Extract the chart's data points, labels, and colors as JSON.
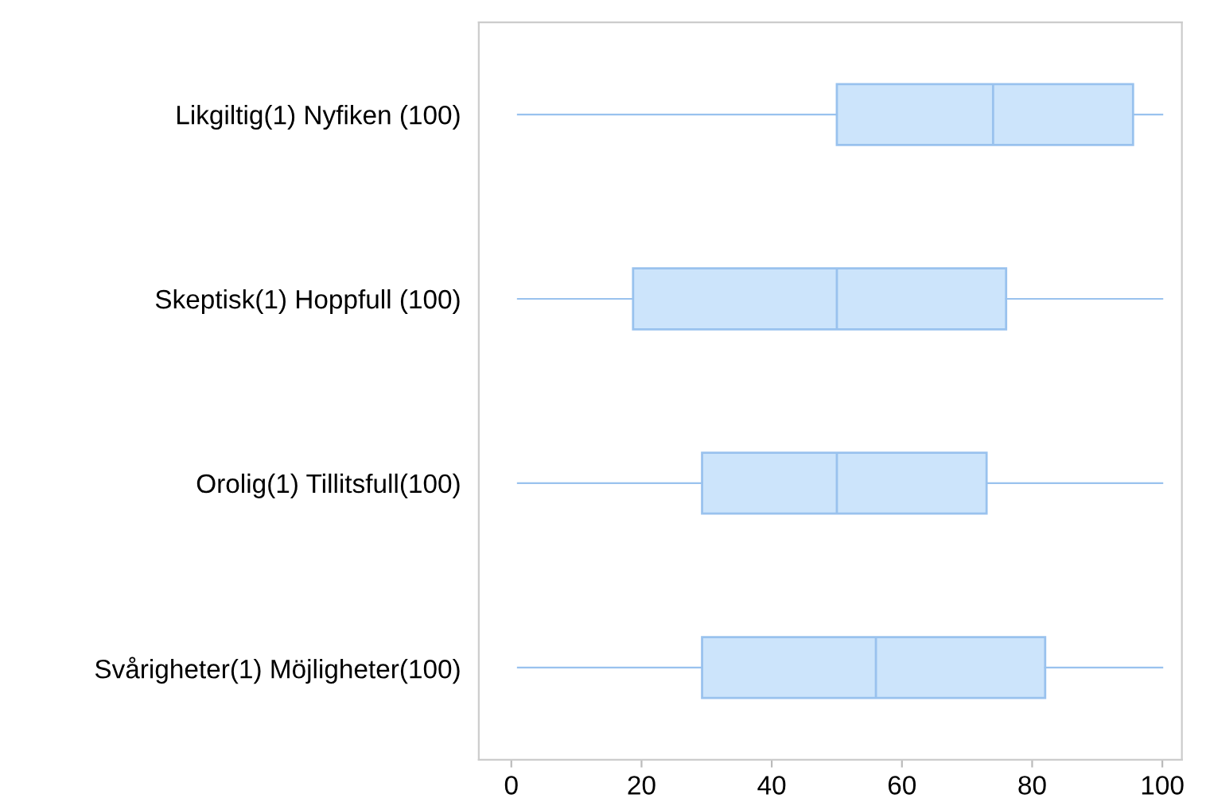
{
  "chart_data": {
    "type": "box",
    "orientation": "horizontal",
    "categories": [
      "Likgiltig(1) Nyfiken (100)",
      "Skeptisk(1) Hoppfull (100)",
      "Orolig(1) Tillitsfull(100)",
      "Svårigheter(1) Möjligheter(100)"
    ],
    "boxes": [
      {
        "low": 1,
        "q1": 50,
        "median": 74,
        "q3": 95.5,
        "high": 100
      },
      {
        "low": 1,
        "q1": 18.7,
        "median": 50,
        "q3": 76,
        "high": 100
      },
      {
        "low": 1,
        "q1": 29.3,
        "median": 50,
        "q3": 73,
        "high": 100
      },
      {
        "low": 1,
        "q1": 29.3,
        "median": 56,
        "q3": 82,
        "high": 100
      }
    ],
    "color": "#cce4fb",
    "xlim": [
      -5,
      103
    ],
    "xticks": [
      0,
      20,
      40,
      60,
      80,
      100
    ],
    "grid": false
  }
}
